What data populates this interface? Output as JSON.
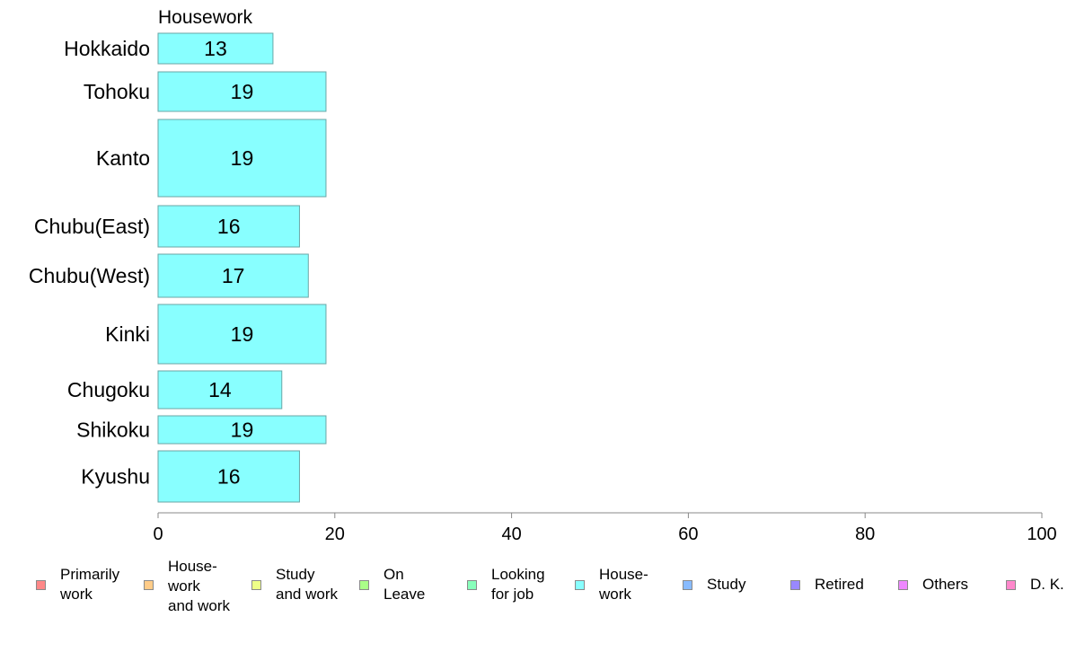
{
  "chart_data": {
    "type": "bar",
    "orientation": "horizontal",
    "title": "Housework",
    "categories": [
      "Hokkaido",
      "Tohoku",
      "Kanto",
      "Chubu(East)",
      "Chubu(West)",
      "Kinki",
      "Chugoku",
      "Shikoku",
      "Kyushu"
    ],
    "values": [
      13,
      19,
      19,
      16,
      17,
      19,
      14,
      19,
      16
    ],
    "xlim": [
      0,
      100
    ],
    "xticks": [
      0,
      20,
      40,
      60,
      80,
      100
    ],
    "grid": false,
    "bar_color": "#88ffff",
    "bar_edge_color": "#6aa6a6",
    "legend_placement": "bottom",
    "legend": [
      {
        "label": "Primarily\nwork",
        "color": "#ff8888"
      },
      {
        "label": "House-\nwork\nand work",
        "color": "#ffcc88"
      },
      {
        "label": "Study\nand work",
        "color": "#eeff88"
      },
      {
        "label": "On\nLeave",
        "color": "#aaff88"
      },
      {
        "label": "Looking\nfor job",
        "color": "#88ffbb"
      },
      {
        "label": "House-\nwork",
        "color": "#88ffff"
      },
      {
        "label": "Study",
        "color": "#88bbff"
      },
      {
        "label": "Retired",
        "color": "#9988ff"
      },
      {
        "label": "Others",
        "color": "#ee88ff"
      },
      {
        "label": "D. K.",
        "color": "#ff88cc"
      }
    ]
  }
}
